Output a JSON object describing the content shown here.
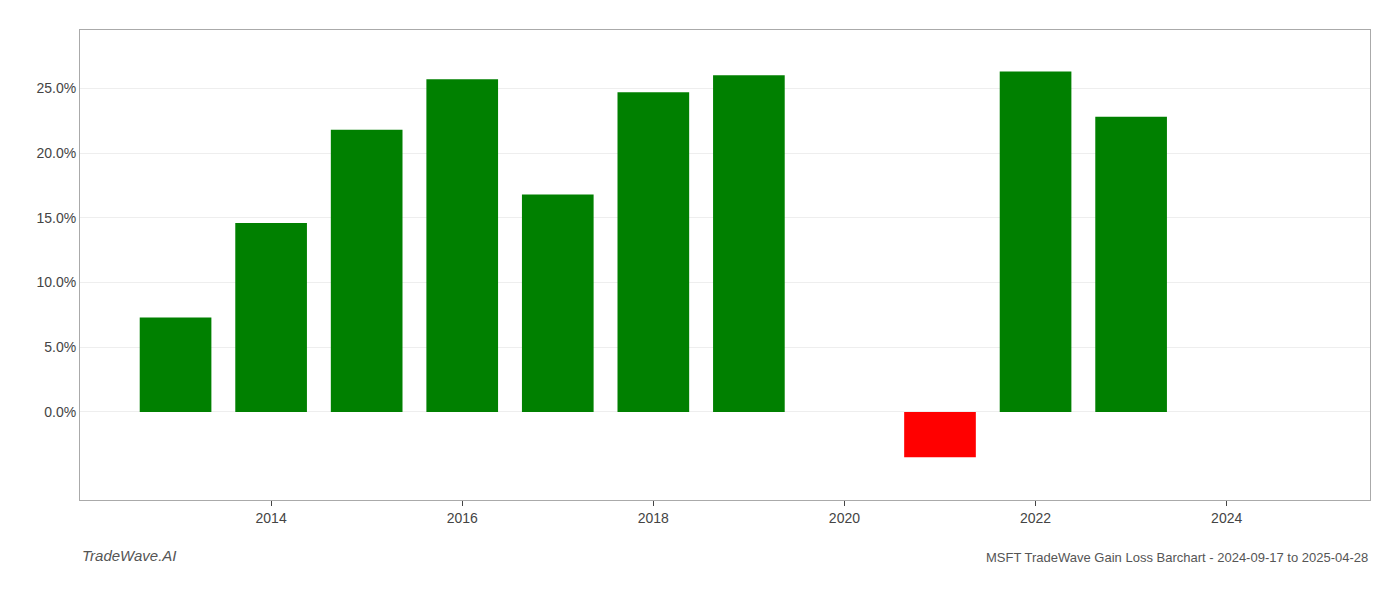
{
  "chart_data": {
    "type": "bar",
    "title": "MSFT TradeWave Gain Loss Barchart - 2024-09-17 to 2025-04-28",
    "annotations": [
      "TradeWave.AI"
    ],
    "x": [
      2013,
      2014,
      2015,
      2016,
      2017,
      2018,
      2019,
      2021,
      2022,
      2023
    ],
    "values": [
      0.073,
      0.146,
      0.218,
      0.257,
      0.168,
      0.247,
      0.26,
      -0.035,
      0.263,
      0.228
    ],
    "colors": [
      "#008000",
      "#008000",
      "#008000",
      "#008000",
      "#008000",
      "#008000",
      "#008000",
      "#ff0000",
      "#008000",
      "#008000"
    ],
    "xlim": [
      2012.0,
      2025.5
    ],
    "xticks": [
      2014,
      2016,
      2018,
      2020,
      2022,
      2024
    ],
    "ylim": [
      -0.068,
      0.295
    ],
    "yticks": [
      {
        "value": 0.0,
        "label": "0.0%"
      },
      {
        "value": 0.05,
        "label": "5.0%"
      },
      {
        "value": 0.1,
        "label": "10.0%"
      },
      {
        "value": 0.15,
        "label": "15.0%"
      },
      {
        "value": 0.2,
        "label": "20.0%"
      },
      {
        "value": 0.25,
        "label": "25.0%"
      }
    ],
    "grid": true
  }
}
